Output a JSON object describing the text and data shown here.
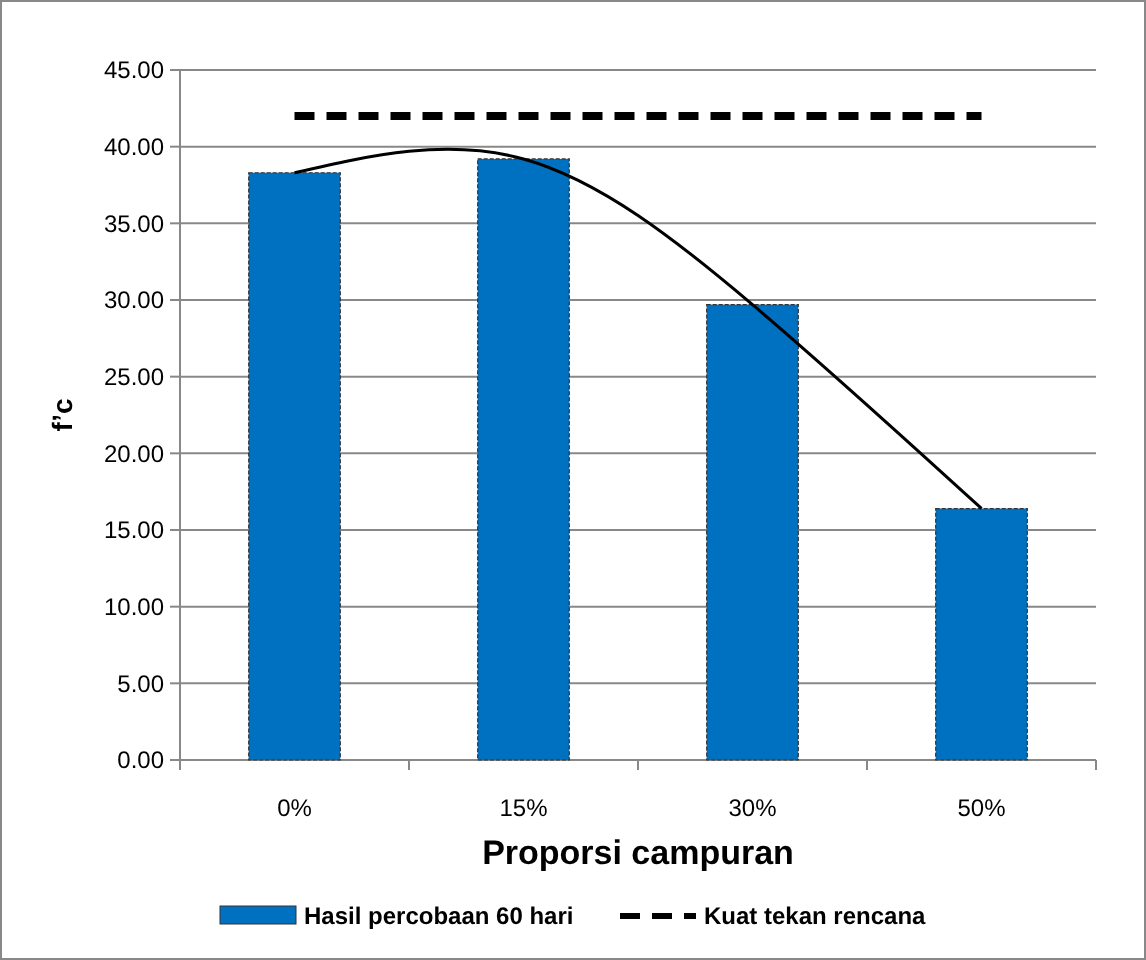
{
  "chart_data": {
    "type": "bar",
    "xlabel": "Proporsi campuran",
    "ylabel": "f’c",
    "categories": [
      "0%",
      "15%",
      "30%",
      "50%"
    ],
    "series": [
      {
        "name": "Hasil percobaan 60 hari",
        "color": "#0070c0",
        "values": [
          38.3,
          39.2,
          29.7,
          16.4
        ]
      },
      {
        "name": "Kuat tekan rencana",
        "type": "line",
        "color": "#000000",
        "line_style": "dashed",
        "values": [
          42,
          42,
          42,
          42
        ]
      },
      {
        "type": "line",
        "color": "#000000",
        "line_style": "solid",
        "values": [
          38.3,
          39.2,
          29.7,
          16.4
        ]
      }
    ],
    "ylim": [
      0,
      45
    ],
    "yticks": [
      {
        "value": 0,
        "label": "0.00"
      },
      {
        "value": 5,
        "label": "5.00"
      },
      {
        "value": 10,
        "label": "10.00"
      },
      {
        "value": 15,
        "label": "15.00"
      },
      {
        "value": 20,
        "label": "20.00"
      },
      {
        "value": 25,
        "label": "25.00"
      },
      {
        "value": 30,
        "label": "30.00"
      },
      {
        "value": 35,
        "label": "35.00"
      },
      {
        "value": 40,
        "label": "40.00"
      },
      {
        "value": 45,
        "label": "45.00"
      }
    ],
    "grid": "y",
    "legend": "bottom"
  }
}
